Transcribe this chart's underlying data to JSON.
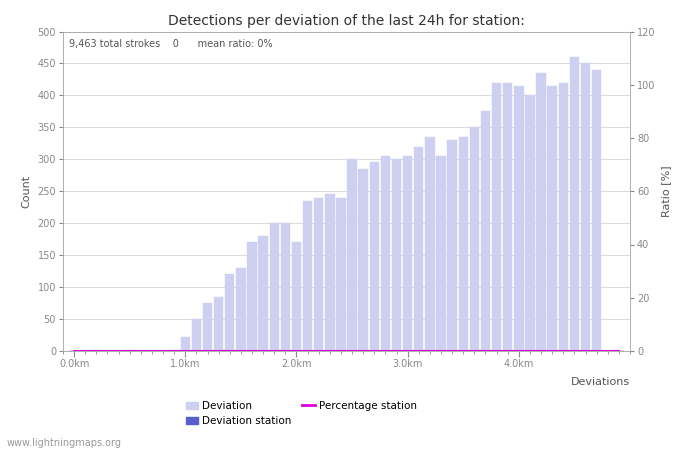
{
  "title": "Detections per deviation of the last 24h for station:",
  "annotation": "9,463 total strokes    0      mean ratio: 0%",
  "xlabel": "Deviations",
  "ylabel_left": "Count",
  "ylabel_right": "Ratio [%]",
  "ylim_left": [
    0,
    500
  ],
  "ylim_right": [
    0,
    120
  ],
  "yticks_left": [
    0,
    50,
    100,
    150,
    200,
    250,
    300,
    350,
    400,
    450,
    500
  ],
  "yticks_right": [
    0,
    20,
    40,
    60,
    80,
    100,
    120
  ],
  "xtick_labels": [
    "0.0km",
    "1.0km",
    "2.0km",
    "3.0km",
    "4.0km"
  ],
  "xtick_positions": [
    0,
    10,
    20,
    30,
    40
  ],
  "bar_color_light": "#cdd0f0",
  "bar_color_dark": "#5560cc",
  "percentage_color": "#dd00dd",
  "background_color": "#ffffff",
  "grid_color": "#cccccc",
  "bar_width": 0.85,
  "deviation_values": [
    0,
    0,
    2,
    0,
    0,
    1,
    0,
    0,
    0,
    1,
    22,
    50,
    75,
    85,
    120,
    130,
    170,
    180,
    200,
    200,
    170,
    235,
    240,
    245,
    240,
    300,
    285,
    295,
    305,
    300,
    305,
    320,
    335,
    305,
    330,
    335,
    350,
    375,
    420,
    420,
    415,
    400,
    435,
    415,
    420,
    460,
    450,
    440,
    0,
    0
  ],
  "station_values": [
    0,
    0,
    0,
    0,
    0,
    0,
    0,
    0,
    0,
    0,
    0,
    0,
    0,
    0,
    0,
    0,
    0,
    0,
    0,
    0,
    0,
    0,
    0,
    0,
    0,
    0,
    0,
    0,
    0,
    0,
    0,
    0,
    0,
    0,
    0,
    0,
    0,
    0,
    0,
    0,
    0,
    0,
    0,
    0,
    0,
    0,
    0,
    0,
    0,
    0
  ],
  "percentage_values": [
    0,
    0,
    0,
    0,
    0,
    0,
    0,
    0,
    0,
    0,
    0,
    0,
    0,
    0,
    0,
    0,
    0,
    0,
    0,
    0,
    0,
    0,
    0,
    0,
    0,
    0,
    0,
    0,
    0,
    0,
    0,
    0,
    0,
    0,
    0,
    0,
    0,
    0,
    0,
    0,
    0,
    0,
    0,
    0,
    0,
    0,
    0,
    0,
    0,
    0
  ],
  "watermark": "www.lightningmaps.org",
  "n_bars": 50,
  "tick_color": "#888888",
  "label_color": "#555555",
  "spine_color": "#aaaaaa"
}
